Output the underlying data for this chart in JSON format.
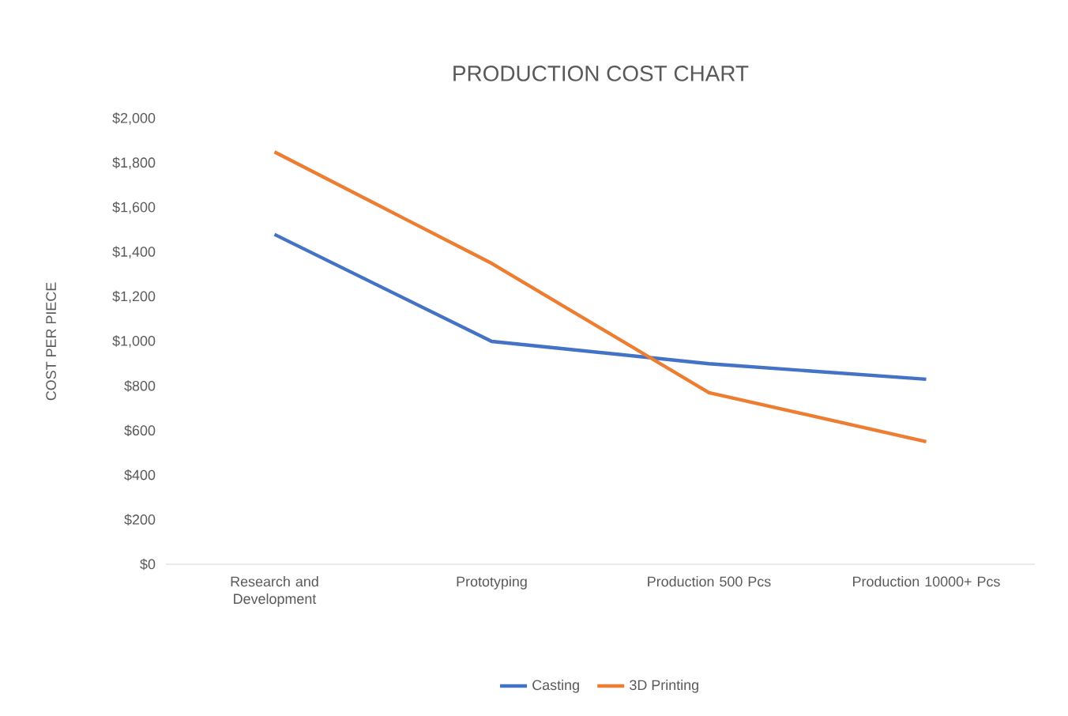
{
  "chart_data": {
    "type": "line",
    "title": "PRODUCTION COST CHART",
    "ylabel": "COST PER PIECE",
    "categories": [
      "Research and Development",
      "Prototyping",
      "Production 500 Pcs",
      "Production 10000+ Pcs"
    ],
    "series": [
      {
        "name": "Casting",
        "color": "#4472c4",
        "values": [
          1480,
          1000,
          900,
          830
        ]
      },
      {
        "name": "3D Printing",
        "color": "#ed7d31",
        "values": [
          1850,
          1350,
          770,
          550
        ]
      }
    ],
    "ylim": [
      0,
      2000
    ],
    "yticks": [
      {
        "value": 0,
        "label": "$0"
      },
      {
        "value": 200,
        "label": "$200"
      },
      {
        "value": 400,
        "label": "$400"
      },
      {
        "value": 600,
        "label": "$600"
      },
      {
        "value": 800,
        "label": "$800"
      },
      {
        "value": 1000,
        "label": "$1,000"
      },
      {
        "value": 1200,
        "label": "$1,200"
      },
      {
        "value": 1400,
        "label": "$1,400"
      },
      {
        "value": 1600,
        "label": "$1,600"
      },
      {
        "value": 1800,
        "label": "$1,800"
      },
      {
        "value": 2000,
        "label": "$2,000"
      }
    ],
    "legend": "bottom",
    "marker": "none",
    "line_style": "solid",
    "grid": false
  }
}
